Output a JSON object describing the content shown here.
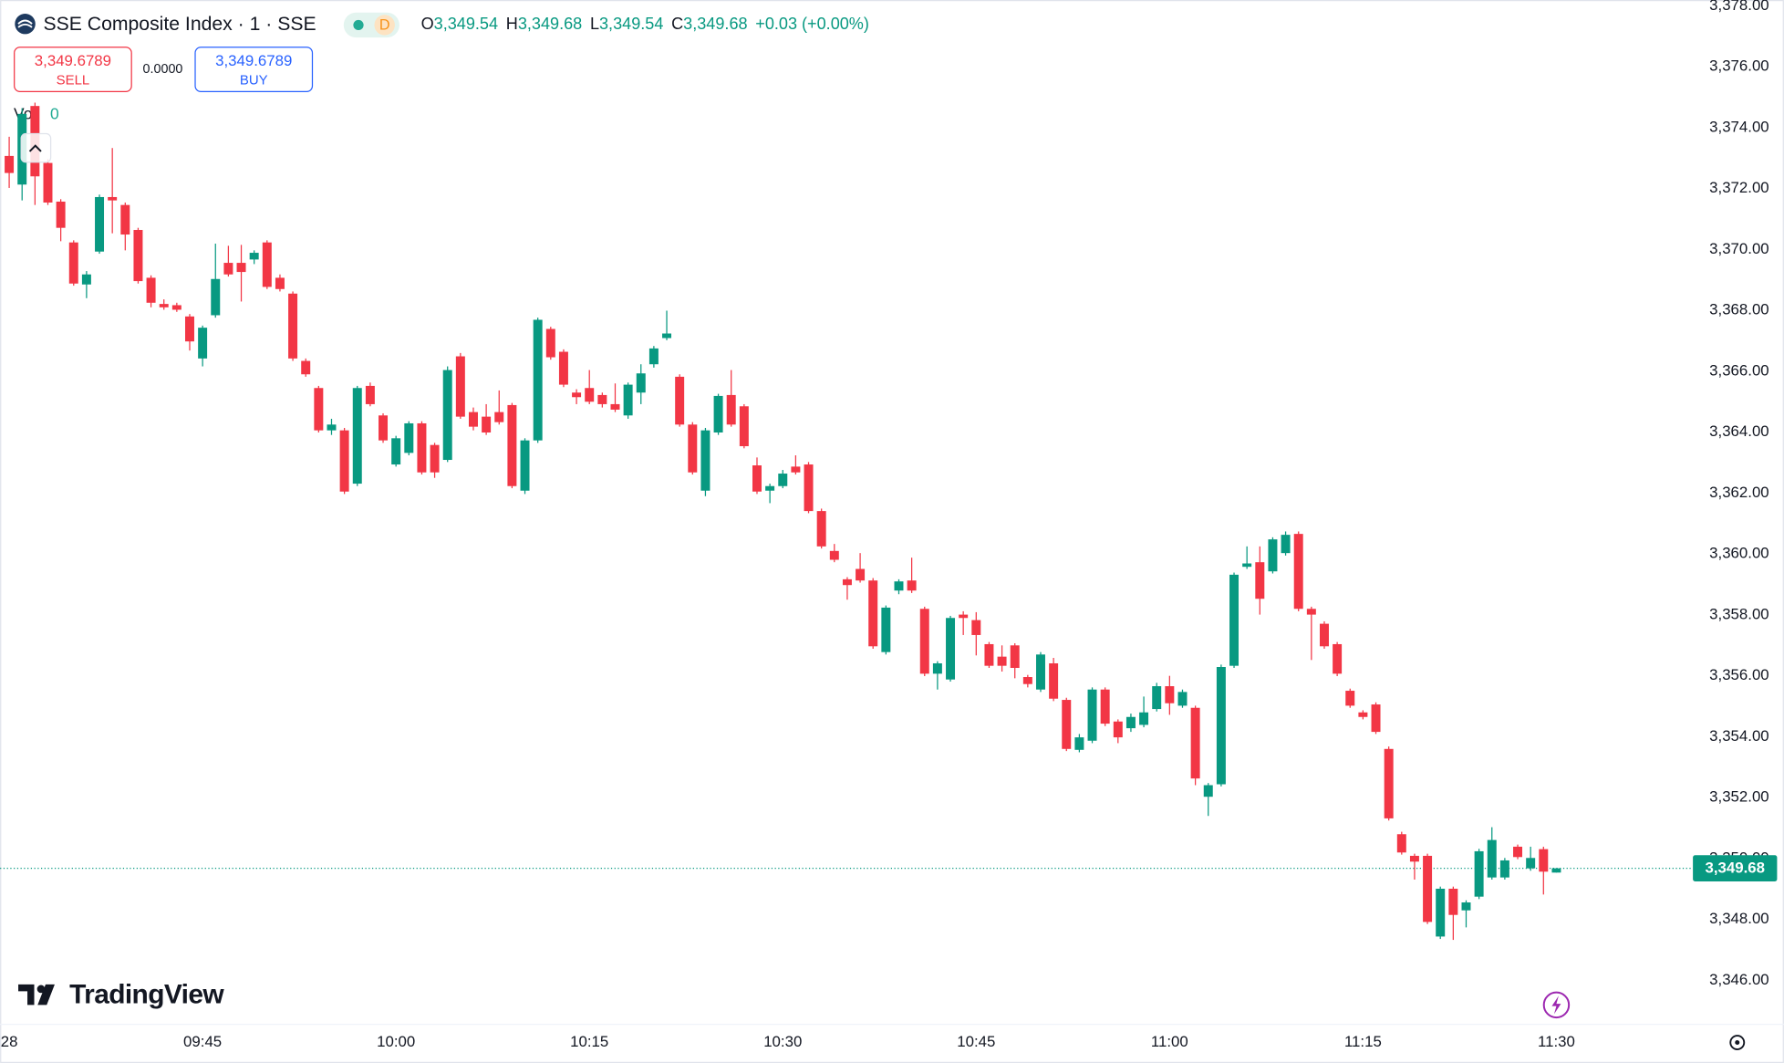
{
  "toolbar": {
    "symbol": "SSE Composite Index · 1 · SSE",
    "badge": "D",
    "ohlc": [
      [
        "O",
        "3,349.54"
      ],
      [
        "H",
        "3,349.68"
      ],
      [
        "L",
        "3,349.54"
      ],
      [
        "C",
        "3,349.68"
      ]
    ],
    "change": "+0.03 (+0.00%)",
    "sell": {
      "price": "3,349.6789",
      "label": "SELL"
    },
    "spread": "0.0000",
    "buy": {
      "price": "3,349.6789",
      "label": "BUY"
    },
    "volume": {
      "label": "Vol",
      "value": "0"
    },
    "brand": "TradingView"
  },
  "chart_data": {
    "type": "candlestick",
    "up_color": "#089981",
    "down_color": "#f23645",
    "grid": false,
    "x": [
      "09:30",
      "09:31",
      "09:32",
      "09:33",
      "09:34",
      "09:35",
      "09:36",
      "09:37",
      "09:38",
      "09:39",
      "09:40",
      "09:41",
      "09:42",
      "09:43",
      "09:44",
      "09:45",
      "09:46",
      "09:47",
      "09:48",
      "09:49",
      "09:50",
      "09:51",
      "09:52",
      "09:53",
      "09:54",
      "09:55",
      "09:56",
      "09:57",
      "09:58",
      "09:59",
      "10:00",
      "10:01",
      "10:02",
      "10:03",
      "10:04",
      "10:05",
      "10:06",
      "10:07",
      "10:08",
      "10:09",
      "10:10",
      "10:11",
      "10:12",
      "10:13",
      "10:14",
      "10:15",
      "10:16",
      "10:17",
      "10:18",
      "10:19",
      "10:20",
      "10:21",
      "10:22",
      "10:23",
      "10:24",
      "10:25",
      "10:26",
      "10:27",
      "10:28",
      "10:29",
      "10:30",
      "10:31",
      "10:32",
      "10:33",
      "10:34",
      "10:35",
      "10:36",
      "10:37",
      "10:38",
      "10:39",
      "10:40",
      "10:41",
      "10:42",
      "10:43",
      "10:44",
      "10:45",
      "10:46",
      "10:47",
      "10:48",
      "10:49",
      "10:50",
      "10:51",
      "10:52",
      "10:53",
      "10:54",
      "10:55",
      "10:56",
      "10:57",
      "10:58",
      "10:59",
      "11:00",
      "11:01",
      "11:02",
      "11:03",
      "11:04",
      "11:05",
      "11:06",
      "11:07",
      "11:08",
      "11:09",
      "11:10",
      "11:11",
      "11:12",
      "11:13",
      "11:14",
      "11:15",
      "11:16",
      "11:17",
      "11:18",
      "11:19",
      "11:20",
      "11:21",
      "11:22",
      "11:23",
      "11:24",
      "11:25",
      "11:26",
      "11:27",
      "11:28",
      "11:29",
      "11:30"
    ],
    "open": [
      3373.07,
      3372.13,
      3374.71,
      3372.84,
      3371.57,
      3370.23,
      3368.85,
      3369.93,
      3371.72,
      3371.46,
      3370.64,
      3369.07,
      3368.21,
      3368.17,
      3367.8,
      3366.42,
      3367.84,
      3369.56,
      3369.56,
      3369.67,
      3370.23,
      3369.07,
      3368.55,
      3366.34,
      3365.45,
      3364.06,
      3364.06,
      3362.31,
      3365.52,
      3364.55,
      3362.94,
      3363.32,
      3364.29,
      3363.58,
      3363.09,
      3366.49,
      3364.66,
      3364.51,
      3364.66,
      3364.89,
      3362.08,
      3363.73,
      3367.39,
      3366.64,
      3365.3,
      3365.45,
      3365.22,
      3364.92,
      3364.55,
      3365.3,
      3366.23,
      3367.09,
      3365.82,
      3364.25,
      3362.08,
      3363.99,
      3365.22,
      3364.85,
      3362.91,
      3362.08,
      3362.23,
      3362.87,
      3362.94,
      3361.41,
      3360.1,
      3359.17,
      3359.51,
      3359.13,
      3356.78,
      3358.8,
      3359.13,
      3358.2,
      3356.07,
      3355.88,
      3358.01,
      3357.83,
      3357.04,
      3356.63,
      3357.0,
      3355.96,
      3355.55,
      3356.41,
      3355.21,
      3353.57,
      3353.87,
      3355.55,
      3354.5,
      3354.28,
      3354.39,
      3354.91,
      3355.66,
      3355.02,
      3354.95,
      3352.03,
      3352.44,
      3356.33,
      3359.58,
      3359.73,
      3359.43,
      3360.03,
      3360.66,
      3358.2,
      3357.71,
      3357.04,
      3355.51,
      3354.8,
      3355.06,
      3353.6,
      3350.8,
      3350.09,
      3350.09,
      3347.44,
      3349.01,
      3348.3,
      3348.75,
      3349.38,
      3349.38,
      3350.39,
      3349.68,
      3350.31,
      3349.54
    ],
    "high": [
      3373.7,
      3374.64,
      3374.82,
      3372.96,
      3371.65,
      3370.3,
      3369.29,
      3371.8,
      3373.33,
      3371.54,
      3370.71,
      3369.15,
      3368.36,
      3368.25,
      3367.88,
      3367.5,
      3370.19,
      3370.12,
      3370.15,
      3369.97,
      3370.3,
      3369.18,
      3368.62,
      3366.42,
      3365.52,
      3364.44,
      3364.14,
      3365.52,
      3365.63,
      3364.62,
      3363.88,
      3364.36,
      3364.36,
      3363.65,
      3366.16,
      3366.6,
      3364.81,
      3364.92,
      3365.37,
      3364.96,
      3363.8,
      3367.76,
      3367.46,
      3366.72,
      3365.41,
      3366.04,
      3365.3,
      3365.6,
      3365.63,
      3366.23,
      3366.83,
      3367.99,
      3365.9,
      3364.33,
      3364.14,
      3365.26,
      3366.04,
      3364.92,
      3363.17,
      3362.31,
      3362.76,
      3363.24,
      3363.02,
      3361.49,
      3360.33,
      3359.24,
      3360.03,
      3359.21,
      3358.31,
      3359.17,
      3359.88,
      3358.27,
      3356.48,
      3357.97,
      3358.12,
      3358.09,
      3357.11,
      3357.0,
      3357.07,
      3356.03,
      3356.78,
      3356.59,
      3355.28,
      3354.09,
      3355.62,
      3355.62,
      3354.57,
      3354.76,
      3355.32,
      3355.77,
      3356.0,
      3355.55,
      3355.02,
      3352.48,
      3356.37,
      3359.39,
      3360.25,
      3360.25,
      3360.55,
      3360.74,
      3360.74,
      3358.27,
      3357.79,
      3357.11,
      3355.58,
      3354.87,
      3355.13,
      3353.68,
      3350.88,
      3350.16,
      3350.16,
      3349.08,
      3349.08,
      3348.63,
      3350.32,
      3351.03,
      3350.02,
      3350.46,
      3350.39,
      3350.39,
      3349.68
    ],
    "low": [
      3372.02,
      3371.61,
      3371.46,
      3371.46,
      3370.27,
      3368.81,
      3368.4,
      3369.86,
      3370.53,
      3369.97,
      3368.88,
      3368.1,
      3368.02,
      3367.95,
      3366.68,
      3366.16,
      3367.76,
      3369.11,
      3368.29,
      3369.52,
      3368.7,
      3368.62,
      3366.34,
      3365.82,
      3363.99,
      3363.91,
      3361.97,
      3362.23,
      3364.85,
      3363.65,
      3362.87,
      3363.24,
      3362.61,
      3362.5,
      3363.02,
      3364.44,
      3364.06,
      3363.91,
      3364.25,
      3362.16,
      3361.97,
      3363.65,
      3366.38,
      3365.48,
      3364.92,
      3364.92,
      3364.81,
      3364.66,
      3364.44,
      3364.92,
      3366.12,
      3367.02,
      3364.18,
      3362.61,
      3361.9,
      3363.91,
      3364.18,
      3363.47,
      3361.97,
      3361.67,
      3362.16,
      3362.61,
      3361.34,
      3360.18,
      3359.73,
      3358.5,
      3359.06,
      3356.89,
      3356.7,
      3358.68,
      3358.72,
      3355.99,
      3355.55,
      3355.81,
      3357.34,
      3356.67,
      3356.26,
      3356.14,
      3355.92,
      3355.62,
      3355.47,
      3355.17,
      3353.53,
      3353.49,
      3353.79,
      3354.35,
      3353.79,
      3354.16,
      3354.31,
      3354.83,
      3354.72,
      3354.95,
      3352.41,
      3351.4,
      3352.37,
      3356.26,
      3359.51,
      3358.01,
      3359.36,
      3359.95,
      3358.12,
      3356.52,
      3356.89,
      3355.99,
      3354.95,
      3354.57,
      3354.09,
      3351.25,
      3350.13,
      3349.31,
      3347.85,
      3347.36,
      3347.33,
      3347.74,
      3348.67,
      3349.31,
      3349.31,
      3349.98,
      3349.6,
      3348.82,
      3349.54
    ],
    "close": [
      3372.51,
      3374.45,
      3372.4,
      3371.54,
      3370.71,
      3368.88,
      3369.18,
      3371.72,
      3371.61,
      3370.49,
      3368.96,
      3368.25,
      3368.1,
      3368.02,
      3366.98,
      3367.43,
      3369.03,
      3369.18,
      3369.26,
      3369.89,
      3368.77,
      3368.7,
      3366.42,
      3365.9,
      3364.06,
      3364.25,
      3362.05,
      3365.45,
      3364.92,
      3363.73,
      3363.8,
      3364.29,
      3362.68,
      3362.68,
      3366.04,
      3364.51,
      3364.18,
      3363.99,
      3364.33,
      3362.23,
      3363.73,
      3367.69,
      3366.46,
      3365.56,
      3365.15,
      3365.0,
      3364.92,
      3364.74,
      3365.56,
      3365.93,
      3366.75,
      3367.24,
      3364.25,
      3362.68,
      3364.06,
      3365.19,
      3364.25,
      3363.54,
      3362.05,
      3362.23,
      3362.64,
      3362.68,
      3361.41,
      3360.25,
      3359.81,
      3358.98,
      3359.13,
      3356.97,
      3358.24,
      3359.1,
      3358.8,
      3356.07,
      3356.41,
      3357.9,
      3357.9,
      3357.34,
      3356.33,
      3356.33,
      3356.26,
      3355.73,
      3356.7,
      3355.25,
      3353.6,
      3353.98,
      3355.55,
      3354.43,
      3353.98,
      3354.65,
      3354.8,
      3355.66,
      3355.1,
      3355.47,
      3352.63,
      3352.41,
      3356.29,
      3359.32,
      3359.69,
      3358.53,
      3360.48,
      3360.63,
      3358.2,
      3358.01,
      3356.97,
      3356.07,
      3355.02,
      3354.65,
      3354.16,
      3351.32,
      3350.2,
      3349.9,
      3347.92,
      3349.01,
      3348.15,
      3348.56,
      3350.24,
      3350.61,
      3349.94,
      3350.05,
      3350.02,
      3349.57,
      3349.68
    ],
    "ylim": [
      3344.82,
      3378.19
    ],
    "yticks": [
      {
        "value": 3346,
        "label": "3,346.00"
      },
      {
        "value": 3348,
        "label": "3,348.00"
      },
      {
        "value": 3350,
        "label": "3,350.00"
      },
      {
        "value": 3352,
        "label": "3,352.00"
      },
      {
        "value": 3354,
        "label": "3,354.00"
      },
      {
        "value": 3356,
        "label": "3,356.00"
      },
      {
        "value": 3358,
        "label": "3,358.00"
      },
      {
        "value": 3360,
        "label": "3,360.00"
      },
      {
        "value": 3362,
        "label": "3,362.00"
      },
      {
        "value": 3364,
        "label": "3,364.00"
      },
      {
        "value": 3366,
        "label": "3,366.00"
      },
      {
        "value": 3368,
        "label": "3,368.00"
      },
      {
        "value": 3370,
        "label": "3,370.00"
      },
      {
        "value": 3372,
        "label": "3,372.00"
      },
      {
        "value": 3374,
        "label": "3,374.00"
      },
      {
        "value": 3376,
        "label": "3,376.00"
      },
      {
        "value": 3378,
        "label": "3,378.00"
      }
    ],
    "xticks": [
      {
        "value": "09:30",
        "label": "28"
      },
      "09:45",
      "10:00",
      "10:15",
      "10:30",
      "10:45",
      "11:00",
      "11:15",
      "11:30"
    ],
    "last_price": {
      "value": 3349.68,
      "label": "3,349.68"
    }
  }
}
